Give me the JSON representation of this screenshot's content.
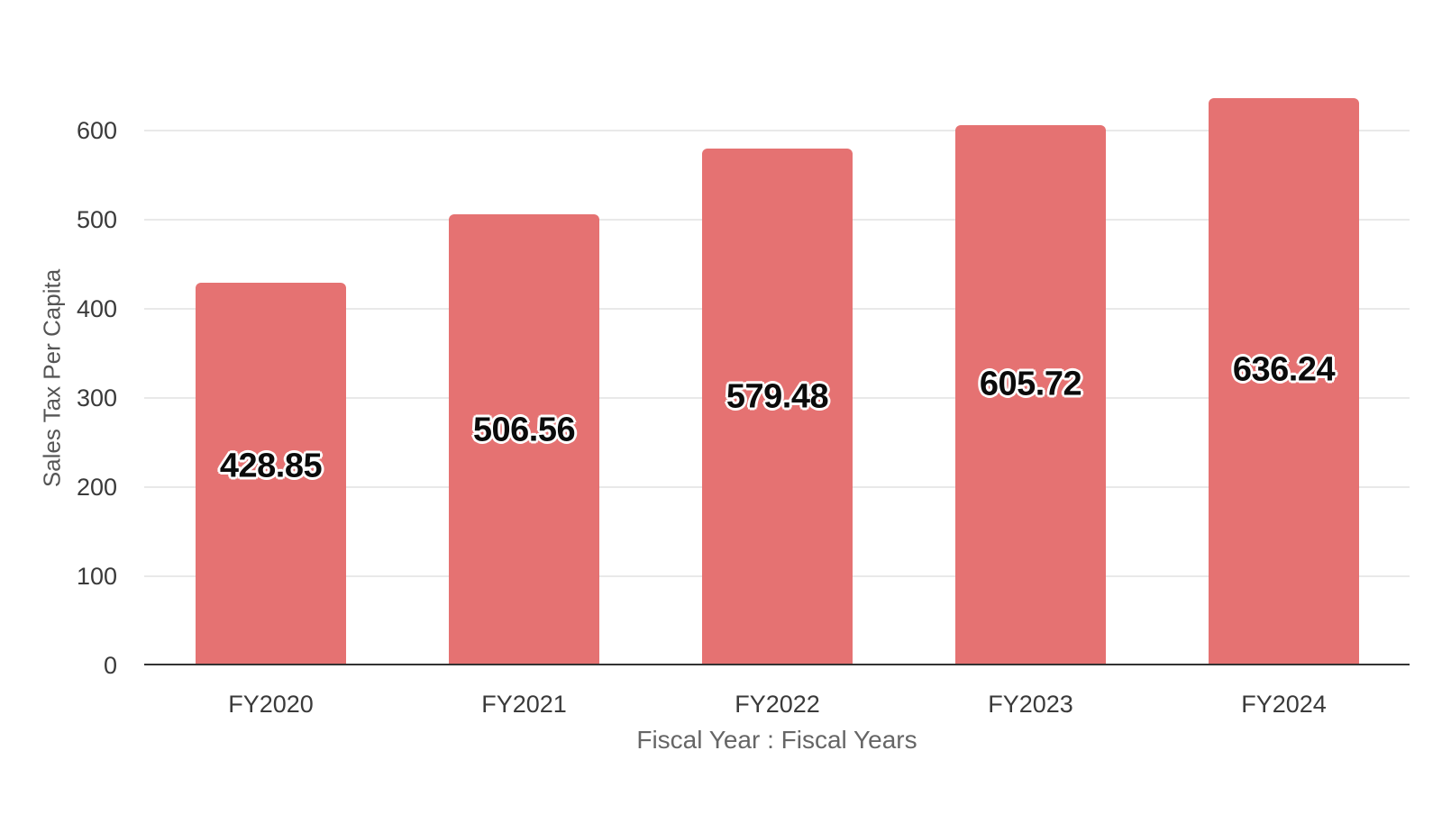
{
  "chart_data": {
    "type": "bar",
    "title": "",
    "categories": [
      "FY2020",
      "FY2021",
      "FY2022",
      "FY2023",
      "FY2024"
    ],
    "values": [
      428.85,
      506.56,
      579.48,
      605.72,
      636.24
    ],
    "value_labels": [
      "428.85",
      "506.56",
      "579.48",
      "605.72",
      "636.24"
    ],
    "xlabel": "Fiscal Year : Fiscal Years",
    "ylabel": "Sales Tax Per Capita",
    "ylim": [
      0,
      650
    ],
    "yticks": [
      0,
      100,
      200,
      300,
      400,
      500,
      600
    ],
    "grid": "horizontal-only",
    "legend": "none",
    "colors": {
      "bar": "#e57272",
      "gridline": "#e9e9e9",
      "axis_line": "#333333",
      "tick_label": "#3a3a3a",
      "axis_title": "#666666",
      "bar_label": "#0b0b0b",
      "bar_label_halo": "#ffffff",
      "background": "#ffffff"
    }
  }
}
